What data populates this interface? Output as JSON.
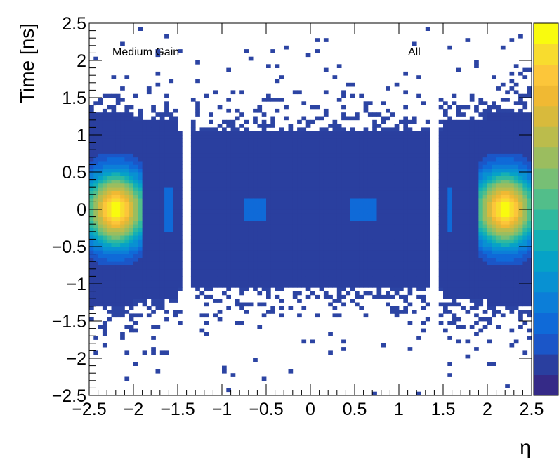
{
  "chart_data": {
    "type": "heatmap",
    "title": "",
    "xlabel": "η",
    "ylabel": "Time [ns]",
    "xlim": [
      -2.5,
      2.5
    ],
    "ylim": [
      -2.5,
      2.5
    ],
    "x_ticks": [
      "−2.5",
      "−2",
      "−1.5",
      "−1",
      "−0.5",
      "0",
      "0.5",
      "1",
      "1.5",
      "2",
      "2.5"
    ],
    "y_ticks": [
      "−2.5",
      "−2",
      "−1.5",
      "−1",
      "−0.5",
      "0",
      "0.5",
      "1",
      "1.5",
      "2",
      "2.5"
    ],
    "x_tick_values": [
      -2.5,
      -2,
      -1.5,
      -1,
      -0.5,
      0,
      0.5,
      1,
      1.5,
      2,
      2.5
    ],
    "y_tick_values": [
      -2.5,
      -2,
      -1.5,
      -1,
      -0.5,
      0,
      0.5,
      1,
      1.5,
      2,
      2.5
    ],
    "annotations": {
      "gain": "Medium Gain",
      "selection": "All"
    },
    "colorbar": {
      "palette": "kBird",
      "colors": [
        "#352a87",
        "#2a3f9f",
        "#1b56c8",
        "#0f6ad8",
        "#0c7ed8",
        "#0891d2",
        "#06a2c7",
        "#15b0b4",
        "#30b99f",
        "#52be8a",
        "#77bf75",
        "#9bbd5f",
        "#bbbc4c",
        "#d8ba3c",
        "#f0b933",
        "#fcc63a",
        "#f8dc2e",
        "#f9fb0e"
      ],
      "tick_labels": []
    },
    "background_color": "#2c44a3",
    "core_region": {
      "eta": [
        -2.5,
        2.5
      ],
      "time": [
        -1.05,
        1.05
      ]
    },
    "gaps": [
      {
        "eta": [
          -1.47,
          -1.37
        ]
      },
      {
        "eta": [
          1.37,
          1.47
        ]
      }
    ],
    "hotspots": [
      {
        "eta": -2.2,
        "time": 0.0,
        "sigma_eta": 0.25,
        "sigma_time": 0.35,
        "peak": 1.0
      },
      {
        "eta": 2.2,
        "time": 0.0,
        "sigma_eta": 0.25,
        "sigma_time": 0.35,
        "peak": 1.0
      }
    ],
    "bright_strips": [
      {
        "eta": [
          -1.65,
          -1.55
        ],
        "time": [
          -0.3,
          0.3
        ],
        "level": 0.2
      },
      {
        "eta": [
          1.55,
          1.62
        ],
        "time": [
          -0.3,
          0.3
        ],
        "level": 0.2
      },
      {
        "eta": [
          -0.75,
          -0.5
        ],
        "time": [
          -0.15,
          0.15
        ],
        "level": 0.15
      },
      {
        "eta": [
          0.45,
          0.75
        ],
        "time": [
          -0.15,
          0.15
        ],
        "level": 0.15
      }
    ]
  }
}
